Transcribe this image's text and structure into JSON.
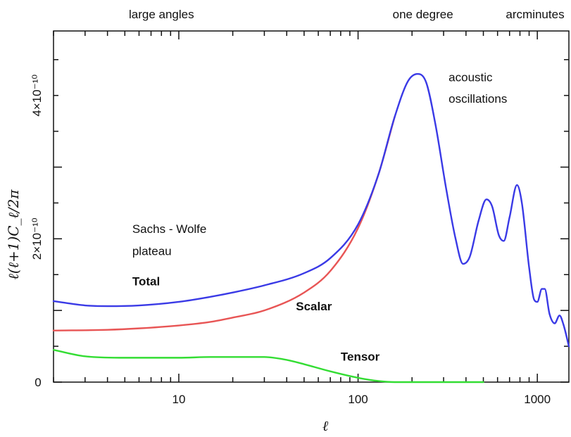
{
  "chart_data": {
    "type": "line",
    "xlabel": "ℓ",
    "ylabel": "ℓ(ℓ+1)C_ℓ/2π",
    "x_scale": "log",
    "xlim": [
      2,
      1500
    ],
    "ylim": [
      0,
      4.9e-10
    ],
    "x_ticks": [
      {
        "value": 10,
        "label": "10"
      },
      {
        "value": 100,
        "label": "100"
      },
      {
        "value": 1000,
        "label": "1000"
      }
    ],
    "y_ticks": [
      {
        "value": 0,
        "label": "0"
      },
      {
        "value": 2e-10,
        "label": "2×10⁻¹⁰"
      },
      {
        "value": 4e-10,
        "label": "4×10⁻¹⁰"
      }
    ],
    "top_labels": [
      {
        "text": "large angles",
        "x": 8
      },
      {
        "text": "one degree",
        "x": 230
      },
      {
        "text": "arcminutes",
        "x": 1150
      }
    ],
    "annotations": [
      {
        "text": "Sachs - Wolfe",
        "x": 5.5,
        "y": 2.08e-10,
        "style": "normal"
      },
      {
        "text": "plateau",
        "x": 5.5,
        "y": 1.77e-10,
        "style": "normal"
      },
      {
        "text": "acoustic",
        "x": 320,
        "y": 4.2e-10,
        "style": "normal"
      },
      {
        "text": "oscillations",
        "x": 320,
        "y": 3.9e-10,
        "style": "normal"
      },
      {
        "text": "Total",
        "x": 5.5,
        "y": 1.35e-10,
        "style": "bold"
      },
      {
        "text": "Scalar",
        "x": 45,
        "y": 1e-10,
        "style": "bold"
      },
      {
        "text": "Tensor",
        "x": 80,
        "y": 3e-11,
        "style": "bold"
      }
    ],
    "series": [
      {
        "name": "Total",
        "color": "#3a3ae6",
        "points": [
          [
            2,
            1.13e-10
          ],
          [
            3,
            1.07e-10
          ],
          [
            4,
            1.06e-10
          ],
          [
            6,
            1.07e-10
          ],
          [
            10,
            1.12e-10
          ],
          [
            15,
            1.19e-10
          ],
          [
            20,
            1.25e-10
          ],
          [
            30,
            1.35e-10
          ],
          [
            50,
            1.52e-10
          ],
          [
            70,
            1.73e-10
          ],
          [
            100,
            2.2e-10
          ],
          [
            130,
            2.9e-10
          ],
          [
            160,
            3.7e-10
          ],
          [
            190,
            4.2e-10
          ],
          [
            215,
            4.3e-10
          ],
          [
            240,
            4.18e-10
          ],
          [
            270,
            3.6e-10
          ],
          [
            310,
            2.7e-10
          ],
          [
            350,
            2e-10
          ],
          [
            385,
            1.65e-10
          ],
          [
            420,
            1.75e-10
          ],
          [
            470,
            2.25e-10
          ],
          [
            520,
            2.55e-10
          ],
          [
            560,
            2.45e-10
          ],
          [
            610,
            2.05e-10
          ],
          [
            650,
            1.97e-10
          ],
          [
            700,
            2.3e-10
          ],
          [
            770,
            2.75e-10
          ],
          [
            820,
            2.5e-10
          ],
          [
            900,
            1.6e-10
          ],
          [
            960,
            1.15e-10
          ],
          [
            1000,
            1.12e-10
          ],
          [
            1060,
            1.3e-10
          ],
          [
            1100,
            1.3e-10
          ],
          [
            1170,
            9.5e-11
          ],
          [
            1250,
            8.2e-11
          ],
          [
            1330,
            9.3e-11
          ],
          [
            1400,
            8e-11
          ],
          [
            1500,
            5e-11
          ]
        ]
      },
      {
        "name": "Scalar",
        "color": "#e85555",
        "points": [
          [
            2,
            7.2e-11
          ],
          [
            4,
            7.3e-11
          ],
          [
            6,
            7.5e-11
          ],
          [
            10,
            7.9e-11
          ],
          [
            15,
            8.4e-11
          ],
          [
            20,
            9e-11
          ],
          [
            30,
            1e-10
          ],
          [
            50,
            1.25e-10
          ],
          [
            70,
            1.55e-10
          ],
          [
            100,
            2.15e-10
          ],
          [
            130,
            2.9e-10
          ],
          [
            160,
            3.7e-10
          ]
        ]
      },
      {
        "name": "Tensor",
        "color": "#33dd33",
        "points": [
          [
            2,
            4.5e-11
          ],
          [
            3,
            3.6e-11
          ],
          [
            5,
            3.4e-11
          ],
          [
            10,
            3.4e-11
          ],
          [
            15,
            3.5e-11
          ],
          [
            20,
            3.5e-11
          ],
          [
            30,
            3.5e-11
          ],
          [
            40,
            3.1e-11
          ],
          [
            50,
            2.5e-11
          ],
          [
            70,
            1.5e-11
          ],
          [
            100,
            6e-12
          ],
          [
            130,
            1.5e-12
          ],
          [
            160,
            0
          ],
          [
            300,
            0
          ],
          [
            500,
            0
          ]
        ]
      }
    ]
  }
}
